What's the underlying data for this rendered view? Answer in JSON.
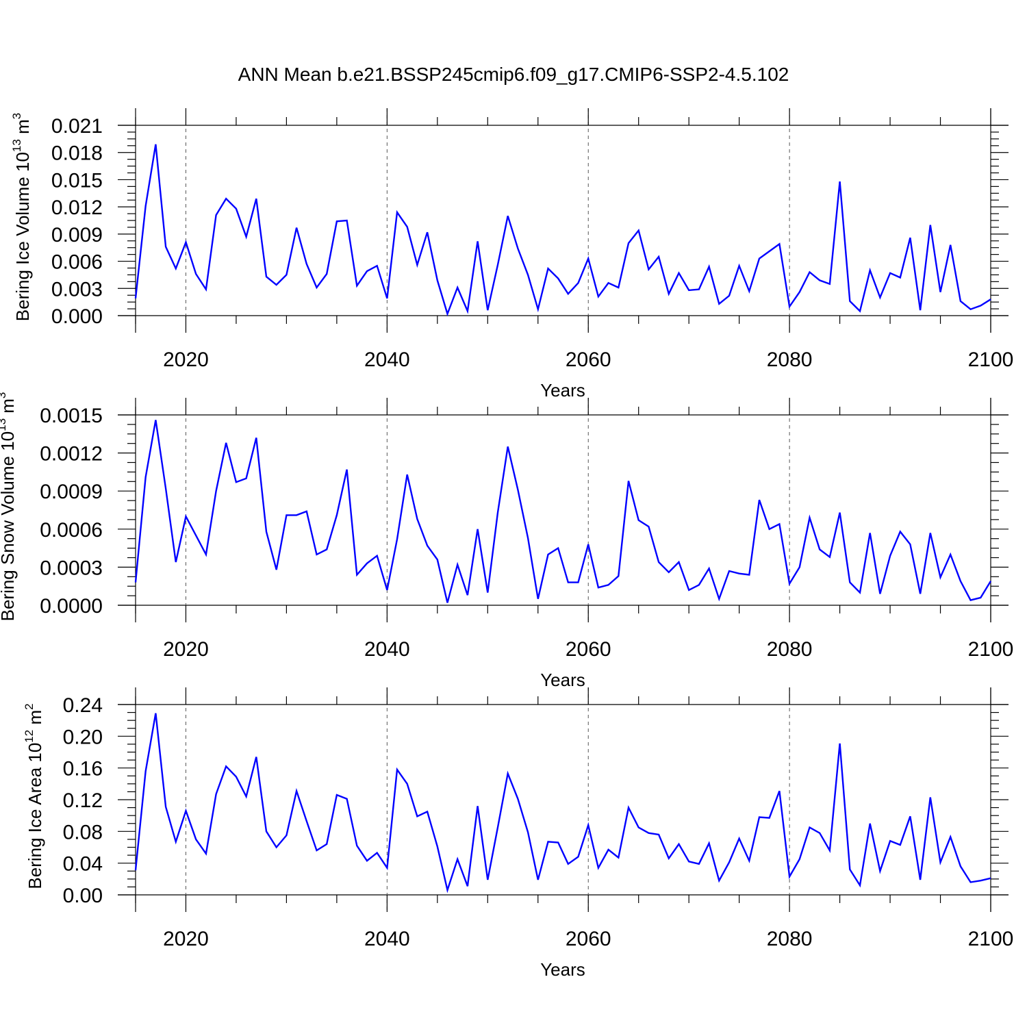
{
  "figure_title": "ANN Mean b.e21.BSSP245cmip6.f09_g17.CMIP6-SSP2-4.5.102",
  "chart_data": [
    {
      "type": "line",
      "title": "ANN Mean b.e21.BSSP245cmip6.f09_g17.CMIP6-SSP2-4.5.102",
      "ylabel": "Bering Ice Volume 10^13 m^3",
      "ylabel_main": "Bering Ice Volume 10",
      "ylabel_exp1": "13",
      "ylabel_unit": " m",
      "ylabel_exp2": "3",
      "xlabel": "Years",
      "xlim": [
        2015,
        2100
      ],
      "ylim": [
        0,
        0.021
      ],
      "xticks": [
        2020,
        2040,
        2060,
        2080,
        2100
      ],
      "xtick_labels": [
        "2020",
        "2040",
        "2060",
        "2080",
        "2100"
      ],
      "yticks": [
        0,
        0.003,
        0.006,
        0.009,
        0.012,
        0.015,
        0.018,
        0.021
      ],
      "ytick_labels": [
        "0.000",
        "0.003",
        "0.006",
        "0.009",
        "0.012",
        "0.015",
        "0.018",
        "0.021"
      ],
      "color": "#0000ff",
      "x_start": 2015,
      "values": [
        0.0019,
        0.0121,
        0.0189,
        0.0076,
        0.0052,
        0.0081,
        0.0046,
        0.0029,
        0.0111,
        0.0129,
        0.0118,
        0.0087,
        0.0129,
        0.0043,
        0.0034,
        0.0045,
        0.0097,
        0.0057,
        0.0031,
        0.0046,
        0.0104,
        0.0105,
        0.0033,
        0.0049,
        0.0055,
        0.0019,
        0.0114,
        0.0098,
        0.0056,
        0.0092,
        0.0039,
        0.0002,
        0.0031,
        0.0005,
        0.0082,
        0.0006,
        0.0056,
        0.011,
        0.0074,
        0.0045,
        0.0007,
        0.0052,
        0.0041,
        0.0024,
        0.0036,
        0.0063,
        0.0021,
        0.0036,
        0.0031,
        0.008,
        0.0094,
        0.0051,
        0.0065,
        0.0024,
        0.0047,
        0.0028,
        0.0029,
        0.0054,
        0.0013,
        0.0022,
        0.0055,
        0.0027,
        0.0063,
        0.0071,
        0.0079,
        0.001,
        0.0026,
        0.0048,
        0.0039,
        0.0035,
        0.0148,
        0.0016,
        0.0005,
        0.005,
        0.002,
        0.0047,
        0.0042,
        0.0086,
        0.0006,
        0.01,
        0.0026,
        0.0078,
        0.0016,
        0.0007,
        0.0011,
        0.0018
      ]
    },
    {
      "type": "line",
      "ylabel": "Bering Snow Volume 10^13 m^3",
      "ylabel_main": "Bering Snow Volume 10",
      "ylabel_exp1": "13",
      "ylabel_unit": " m",
      "ylabel_exp2": "3",
      "xlabel": "Years",
      "xlim": [
        2015,
        2100
      ],
      "ylim": [
        0,
        0.0015
      ],
      "xticks": [
        2020,
        2040,
        2060,
        2080,
        2100
      ],
      "xtick_labels": [
        "2020",
        "2040",
        "2060",
        "2080",
        "2100"
      ],
      "yticks": [
        0,
        0.0003,
        0.0006,
        0.0009,
        0.0012,
        0.0015
      ],
      "ytick_labels": [
        "0.0000",
        "0.0003",
        "0.0006",
        "0.0009",
        "0.0012",
        "0.0015"
      ],
      "color": "#0000ff",
      "x_start": 2015,
      "values": [
        0.00018,
        0.00101,
        0.00146,
        0.00092,
        0.00034,
        0.0007,
        0.00055,
        0.0004,
        0.0009,
        0.00128,
        0.00097,
        0.001,
        0.00132,
        0.00058,
        0.00028,
        0.00071,
        0.00071,
        0.00074,
        0.0004,
        0.00044,
        0.00071,
        0.00107,
        0.00024,
        0.00033,
        0.00039,
        0.00012,
        0.00052,
        0.00103,
        0.00068,
        0.00047,
        0.00036,
        2e-05,
        0.00032,
        8e-05,
        0.0006,
        0.0001,
        0.00073,
        0.00125,
        0.00091,
        0.00053,
        5e-05,
        0.0004,
        0.00045,
        0.00018,
        0.00018,
        0.00048,
        0.00014,
        0.00016,
        0.00023,
        0.00098,
        0.00067,
        0.00062,
        0.00034,
        0.00026,
        0.00034,
        0.00012,
        0.00016,
        0.00029,
        5e-05,
        0.00027,
        0.00025,
        0.00024,
        0.00083,
        0.0006,
        0.00064,
        0.00017,
        0.0003,
        0.00069,
        0.00044,
        0.00038,
        0.00073,
        0.00018,
        0.0001,
        0.00057,
        9e-05,
        0.00039,
        0.00058,
        0.00048,
        9e-05,
        0.00057,
        0.00022,
        0.0004,
        0.00019,
        4e-05,
        6e-05,
        0.00019
      ]
    },
    {
      "type": "line",
      "ylabel": "Bering Ice Area 10^12 m^2",
      "ylabel_main": "Bering Ice Area 10",
      "ylabel_exp1": "12",
      "ylabel_unit": " m",
      "ylabel_exp2": "2",
      "xlabel": "Years",
      "xlim": [
        2015,
        2100
      ],
      "ylim": [
        0,
        0.24
      ],
      "xticks": [
        2020,
        2040,
        2060,
        2080,
        2100
      ],
      "xtick_labels": [
        "2020",
        "2040",
        "2060",
        "2080",
        "2100"
      ],
      "yticks": [
        0,
        0.04,
        0.08,
        0.12,
        0.16,
        0.2,
        0.24
      ],
      "ytick_labels": [
        "0.00",
        "0.04",
        "0.08",
        "0.12",
        "0.16",
        "0.20",
        "0.24"
      ],
      "color": "#0000ff",
      "x_start": 2015,
      "values": [
        0.031,
        0.156,
        0.229,
        0.111,
        0.067,
        0.106,
        0.07,
        0.052,
        0.127,
        0.162,
        0.149,
        0.124,
        0.174,
        0.08,
        0.06,
        0.075,
        0.131,
        0.093,
        0.056,
        0.064,
        0.126,
        0.121,
        0.062,
        0.043,
        0.053,
        0.034,
        0.158,
        0.14,
        0.099,
        0.105,
        0.061,
        0.006,
        0.045,
        0.011,
        0.112,
        0.019,
        0.085,
        0.153,
        0.121,
        0.079,
        0.019,
        0.067,
        0.066,
        0.039,
        0.048,
        0.088,
        0.034,
        0.057,
        0.047,
        0.11,
        0.085,
        0.078,
        0.076,
        0.046,
        0.064,
        0.042,
        0.039,
        0.065,
        0.018,
        0.041,
        0.071,
        0.043,
        0.098,
        0.097,
        0.131,
        0.023,
        0.045,
        0.085,
        0.078,
        0.056,
        0.191,
        0.032,
        0.012,
        0.09,
        0.03,
        0.068,
        0.063,
        0.099,
        0.019,
        0.123,
        0.041,
        0.073,
        0.036,
        0.016,
        0.018,
        0.021
      ]
    }
  ]
}
